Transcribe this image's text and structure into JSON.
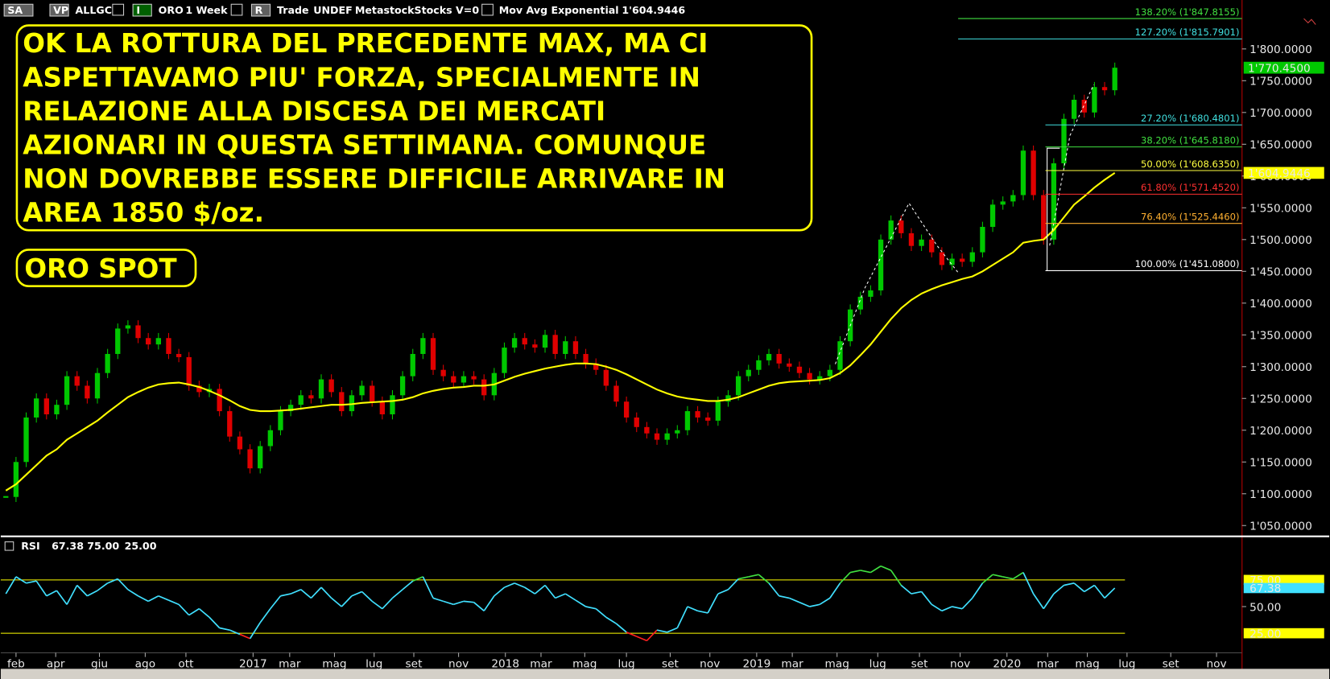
{
  "toolbar": {
    "items": [
      "SA",
      "VP",
      "ALLGC",
      "I",
      "ORO",
      "1 Week",
      "R",
      "Trade",
      "UNDEF",
      "Metastock",
      "Stocks",
      "V=0",
      "Mov Avg Exponential"
    ]
  },
  "chart_data": {
    "type": "candlestick",
    "close": [
      1095,
      1150,
      1220,
      1250,
      1225,
      1240,
      1285,
      1270,
      1250,
      1290,
      1320,
      1360,
      1365,
      1345,
      1335,
      1345,
      1320,
      1315,
      1270,
      1260,
      1265,
      1230,
      1190,
      1170,
      1140,
      1175,
      1200,
      1230,
      1240,
      1255,
      1250,
      1280,
      1260,
      1230,
      1255,
      1270,
      1245,
      1225,
      1255,
      1285,
      1320,
      1345,
      1295,
      1285,
      1275,
      1285,
      1280,
      1255,
      1290,
      1330,
      1345,
      1335,
      1330,
      1350,
      1320,
      1340,
      1320,
      1305,
      1295,
      1270,
      1245,
      1220,
      1205,
      1195,
      1185,
      1195,
      1200,
      1230,
      1220,
      1215,
      1245,
      1255,
      1285,
      1295,
      1310,
      1320,
      1305,
      1300,
      1290,
      1280,
      1285,
      1295,
      1340,
      1390,
      1410,
      1420,
      1500,
      1530,
      1510,
      1490,
      1500,
      1480,
      1460,
      1470,
      1465,
      1480,
      1520,
      1555,
      1560,
      1570,
      1640,
      1570,
      1500,
      1620,
      1690,
      1720,
      1700,
      1740,
      1735,
      1770.45
    ],
    "last_price_label": "1'770.4500",
    "up_color": "#00c800",
    "down_color": "#e00000",
    "ema": {
      "name": "Mov Avg Exponential",
      "color": "#ffff00",
      "label": "1'604.9446",
      "values": [
        1105,
        1115,
        1130,
        1145,
        1160,
        1170,
        1185,
        1195,
        1205,
        1215,
        1228,
        1240,
        1252,
        1260,
        1267,
        1272,
        1274,
        1275,
        1272,
        1268,
        1262,
        1255,
        1247,
        1238,
        1232,
        1230,
        1230,
        1231,
        1232,
        1234,
        1236,
        1238,
        1240,
        1240,
        1241,
        1243,
        1244,
        1245,
        1246,
        1248,
        1252,
        1258,
        1262,
        1265,
        1267,
        1268,
        1270,
        1270,
        1272,
        1278,
        1284,
        1289,
        1293,
        1297,
        1300,
        1303,
        1305,
        1305,
        1304,
        1300,
        1295,
        1288,
        1280,
        1272,
        1264,
        1258,
        1253,
        1250,
        1248,
        1246,
        1246,
        1248,
        1252,
        1258,
        1264,
        1270,
        1274,
        1276,
        1277,
        1278,
        1279,
        1282,
        1290,
        1302,
        1318,
        1335,
        1355,
        1375,
        1392,
        1405,
        1415,
        1422,
        1428,
        1433,
        1438,
        1442,
        1450,
        1460,
        1470,
        1480,
        1495,
        1498,
        1500,
        1515,
        1535,
        1555,
        1568,
        1582,
        1594,
        1604.9446
      ]
    },
    "ylim": [
      1035,
      1877
    ],
    "yticks": [
      {
        "value": 1050,
        "label": "1'050.0000"
      },
      {
        "value": 1100,
        "label": "1'100.0000"
      },
      {
        "value": 1150,
        "label": "1'150.0000"
      },
      {
        "value": 1200,
        "label": "1'200.0000"
      },
      {
        "value": 1250,
        "label": "1'250.0000"
      },
      {
        "value": 1300,
        "label": "1'300.0000"
      },
      {
        "value": 1350,
        "label": "1'350.0000"
      },
      {
        "value": 1400,
        "label": "1'400.0000"
      },
      {
        "value": 1450,
        "label": "1'450.0000"
      },
      {
        "value": 1500,
        "label": "1'500.0000"
      },
      {
        "value": 1550,
        "label": "1'550.0000"
      },
      {
        "value": 1600,
        "label": "1'600.0000"
      },
      {
        "value": 1650,
        "label": "1'650.0000"
      },
      {
        "value": 1700,
        "label": "1'700.0000"
      },
      {
        "value": 1750,
        "label": "1'750.0000"
      },
      {
        "value": 1800,
        "label": "1'800.0000"
      }
    ],
    "xlim": [
      0,
      122
    ],
    "xticks": [
      {
        "value": 1.5,
        "label": "feb"
      },
      {
        "value": 5.4,
        "label": "apr"
      },
      {
        "value": 9.7,
        "label": "giu"
      },
      {
        "value": 14.2,
        "label": "ago"
      },
      {
        "value": 18.2,
        "label": "ott"
      },
      {
        "value": 24.8,
        "label": "2017"
      },
      {
        "value": 28.4,
        "label": "mar"
      },
      {
        "value": 32.8,
        "label": "mag"
      },
      {
        "value": 36.7,
        "label": "lug"
      },
      {
        "value": 40.6,
        "label": "set"
      },
      {
        "value": 45,
        "label": "nov"
      },
      {
        "value": 49.6,
        "label": "2018"
      },
      {
        "value": 53.1,
        "label": "mar"
      },
      {
        "value": 57.4,
        "label": "mag"
      },
      {
        "value": 61.5,
        "label": "lug"
      },
      {
        "value": 65.8,
        "label": "set"
      },
      {
        "value": 69.7,
        "label": "nov"
      },
      {
        "value": 74.3,
        "label": "2019"
      },
      {
        "value": 77.8,
        "label": "mar"
      },
      {
        "value": 82.2,
        "label": "mag"
      },
      {
        "value": 86.2,
        "label": "lug"
      },
      {
        "value": 90.3,
        "label": "set"
      },
      {
        "value": 94.3,
        "label": "nov"
      },
      {
        "value": 98.9,
        "label": "2020"
      },
      {
        "value": 102.9,
        "label": "mar"
      },
      {
        "value": 106.8,
        "label": "mag"
      },
      {
        "value": 110.7,
        "label": "lug"
      },
      {
        "value": 115,
        "label": "set"
      },
      {
        "value": 119.5,
        "label": "nov"
      }
    ],
    "fib": [
      {
        "value": 1847.8155,
        "label": "138.20% (1'847.8155)",
        "color": "#40e040"
      },
      {
        "value": 1815.7901,
        "label": "127.20% (1'815.7901)",
        "color": "#40e0e0"
      },
      {
        "value": 1680.4801,
        "label": "27.20% (1'680.4801)",
        "color": "#40e0e0"
      },
      {
        "value": 1645.818,
        "label": "38.20% (1'645.8180)",
        "color": "#40e040"
      },
      {
        "value": 1608.635,
        "label": "50.00% (1'608.6350)",
        "color": "#ffff40"
      },
      {
        "value": 1571.452,
        "label": "61.80% (1'571.4520)",
        "color": "#ff3030"
      },
      {
        "value": 1525.446,
        "label": "76.40% (1'525.4460)",
        "color": "#ffb030"
      },
      {
        "value": 1451.08,
        "label": "100.00% (1'451.0800)",
        "color": "#ffffff"
      }
    ],
    "annotations": [
      [
        "OK LA ROTTURA DEL PRECEDENTE MAX, MA CI",
        "ASPETTAVAMO PIU' FORZA, SPECIALMENTE IN",
        "RELAZIONE ALLA DISCESA DEI MERCATI",
        "AZIONARI IN QUESTA SETTIMANA. COMUNQUE",
        "NON DOVREBBE ESSERE DIFFICILE ARRIVARE IN",
        "AREA 1850 $/oz."
      ],
      [
        "ORO SPOT"
      ]
    ],
    "rsi": {
      "name": "RSI",
      "label": "67.38",
      "color": "#40e0ff",
      "over_color": "#40e040",
      "under_color": "#ff2020",
      "ylim": [
        7.5,
        113.9
      ],
      "yticks": [
        {
          "value": 75,
          "label": "75.00"
        },
        {
          "value": 50,
          "label": "50.00"
        },
        {
          "value": 25,
          "label": "25.00"
        }
      ],
      "values": [
        62,
        78,
        72,
        74,
        60,
        65,
        52,
        70,
        60,
        65,
        72,
        76,
        66,
        60,
        55,
        60,
        56,
        52,
        42,
        48,
        40,
        30,
        28,
        24,
        20,
        35,
        48,
        60,
        62,
        66,
        58,
        68,
        58,
        50,
        60,
        64,
        55,
        48,
        58,
        66,
        74,
        78,
        58,
        55,
        52,
        55,
        54,
        46,
        60,
        68,
        72,
        68,
        62,
        70,
        58,
        62,
        56,
        50,
        48,
        40,
        34,
        26,
        22,
        18,
        28,
        26,
        30,
        50,
        46,
        44,
        62,
        66,
        76,
        78,
        80,
        72,
        60,
        58,
        54,
        50,
        52,
        58,
        72,
        82,
        84,
        82,
        88,
        84,
        70,
        62,
        64,
        52,
        46,
        50,
        48,
        58,
        72,
        80,
        78,
        76,
        82,
        62,
        48,
        62,
        70,
        72,
        64,
        70,
        58,
        67.38
      ]
    }
  }
}
